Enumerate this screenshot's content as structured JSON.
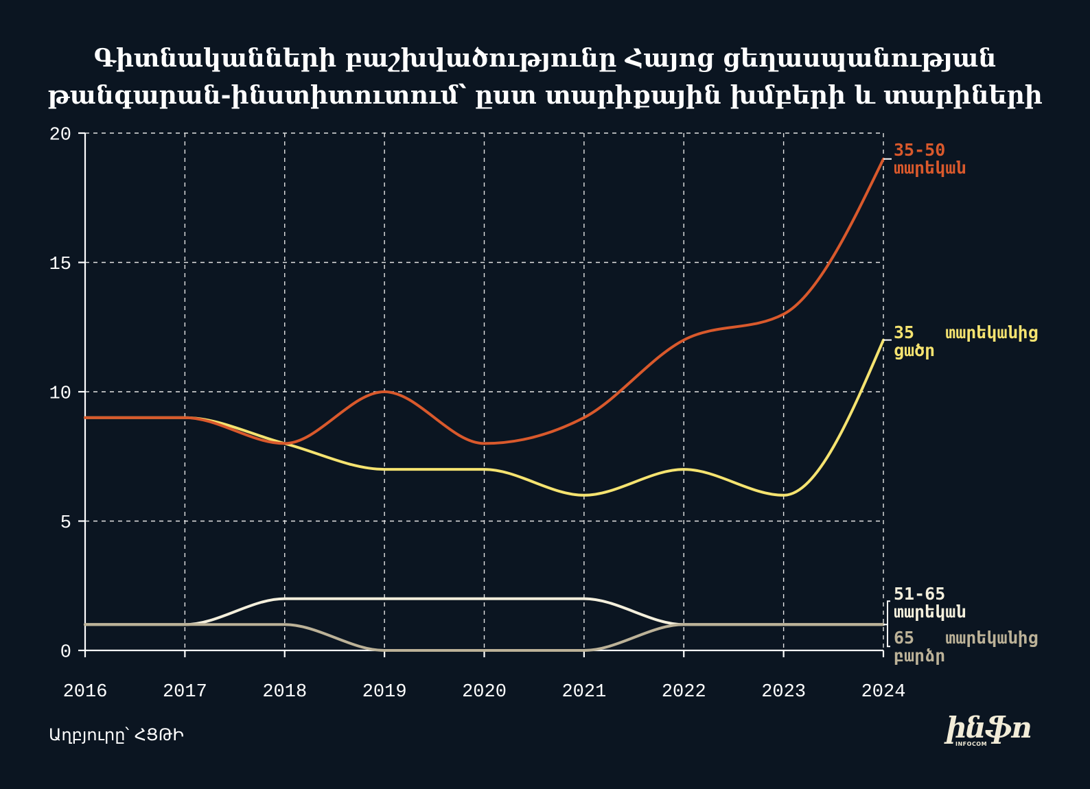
{
  "theme": {
    "background": "#0b1521"
  },
  "chart_data": {
    "type": "line",
    "title": "Գիտնականների բաշխվածությունը Հայոց ցեղասպանության\nթանգարան-ինստիտուտում՝ ըստ տարիքային խմբերի և տարիների",
    "x": [
      "2016",
      "2017",
      "2018",
      "2019",
      "2020",
      "2021",
      "2022",
      "2023",
      "2024"
    ],
    "ylim": [
      0,
      20
    ],
    "y_ticks": [
      0,
      5,
      10,
      15,
      20
    ],
    "grid": true,
    "legend": "right",
    "series": [
      {
        "name": "35-50 տարեկան",
        "color": "#d9592c",
        "values": [
          9,
          9,
          8,
          10,
          8,
          9,
          12,
          13,
          19
        ]
      },
      {
        "name": "35 տարեկանից ցածր",
        "color": "#f5e370",
        "values": [
          9,
          9,
          8,
          7,
          7,
          6,
          7,
          6,
          12
        ]
      },
      {
        "name": "51-65 տարեկան",
        "color": "#f4efdc",
        "values": [
          1,
          1,
          2,
          2,
          2,
          2,
          1,
          1,
          1
        ]
      },
      {
        "name": "65 տարեկանից բարձր",
        "color": "#bcb298",
        "values": [
          1,
          1,
          1,
          0,
          0,
          0,
          1,
          1,
          1
        ]
      }
    ]
  },
  "footer": {
    "source": "Աղբյուրը՝ ՀՑԹԻ"
  },
  "logo": {
    "text": "ինֆո",
    "subtext": "INFOCOM"
  }
}
